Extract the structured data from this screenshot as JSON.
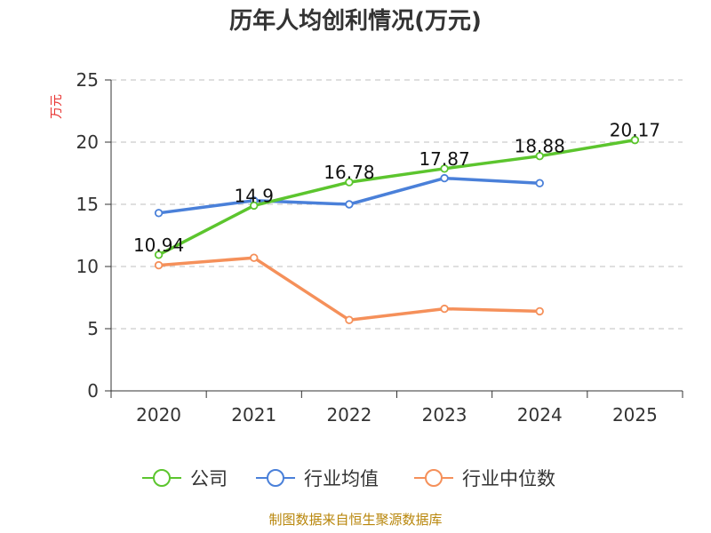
{
  "chart_data": {
    "type": "line",
    "title": "历年人均创利情况(万元)",
    "ylabel": "万元",
    "xlabel": "",
    "categories": [
      "2020",
      "2021",
      "2022",
      "2023",
      "2024",
      "2025"
    ],
    "ylim": [
      0,
      25
    ],
    "yticks": [
      "0",
      "5",
      "10",
      "15",
      "20",
      "25"
    ],
    "grid": true,
    "legend_position": "bottom",
    "series": [
      {
        "name": "公司",
        "color": "#5cc52e",
        "values": [
          10.94,
          14.9,
          16.78,
          17.87,
          18.88,
          20.17
        ],
        "labels": [
          "10.94",
          "14.9",
          "16.78",
          "17.87",
          "18.88",
          "20.17"
        ]
      },
      {
        "name": "行业均值",
        "color": "#4a80d9",
        "values": [
          14.3,
          15.3,
          15.0,
          17.1,
          16.7,
          null
        ]
      },
      {
        "name": "行业中位数",
        "color": "#f5905a",
        "values": [
          10.1,
          10.7,
          5.7,
          6.6,
          6.4,
          null
        ]
      }
    ],
    "source": "制图数据来自恒生聚源数据库"
  }
}
